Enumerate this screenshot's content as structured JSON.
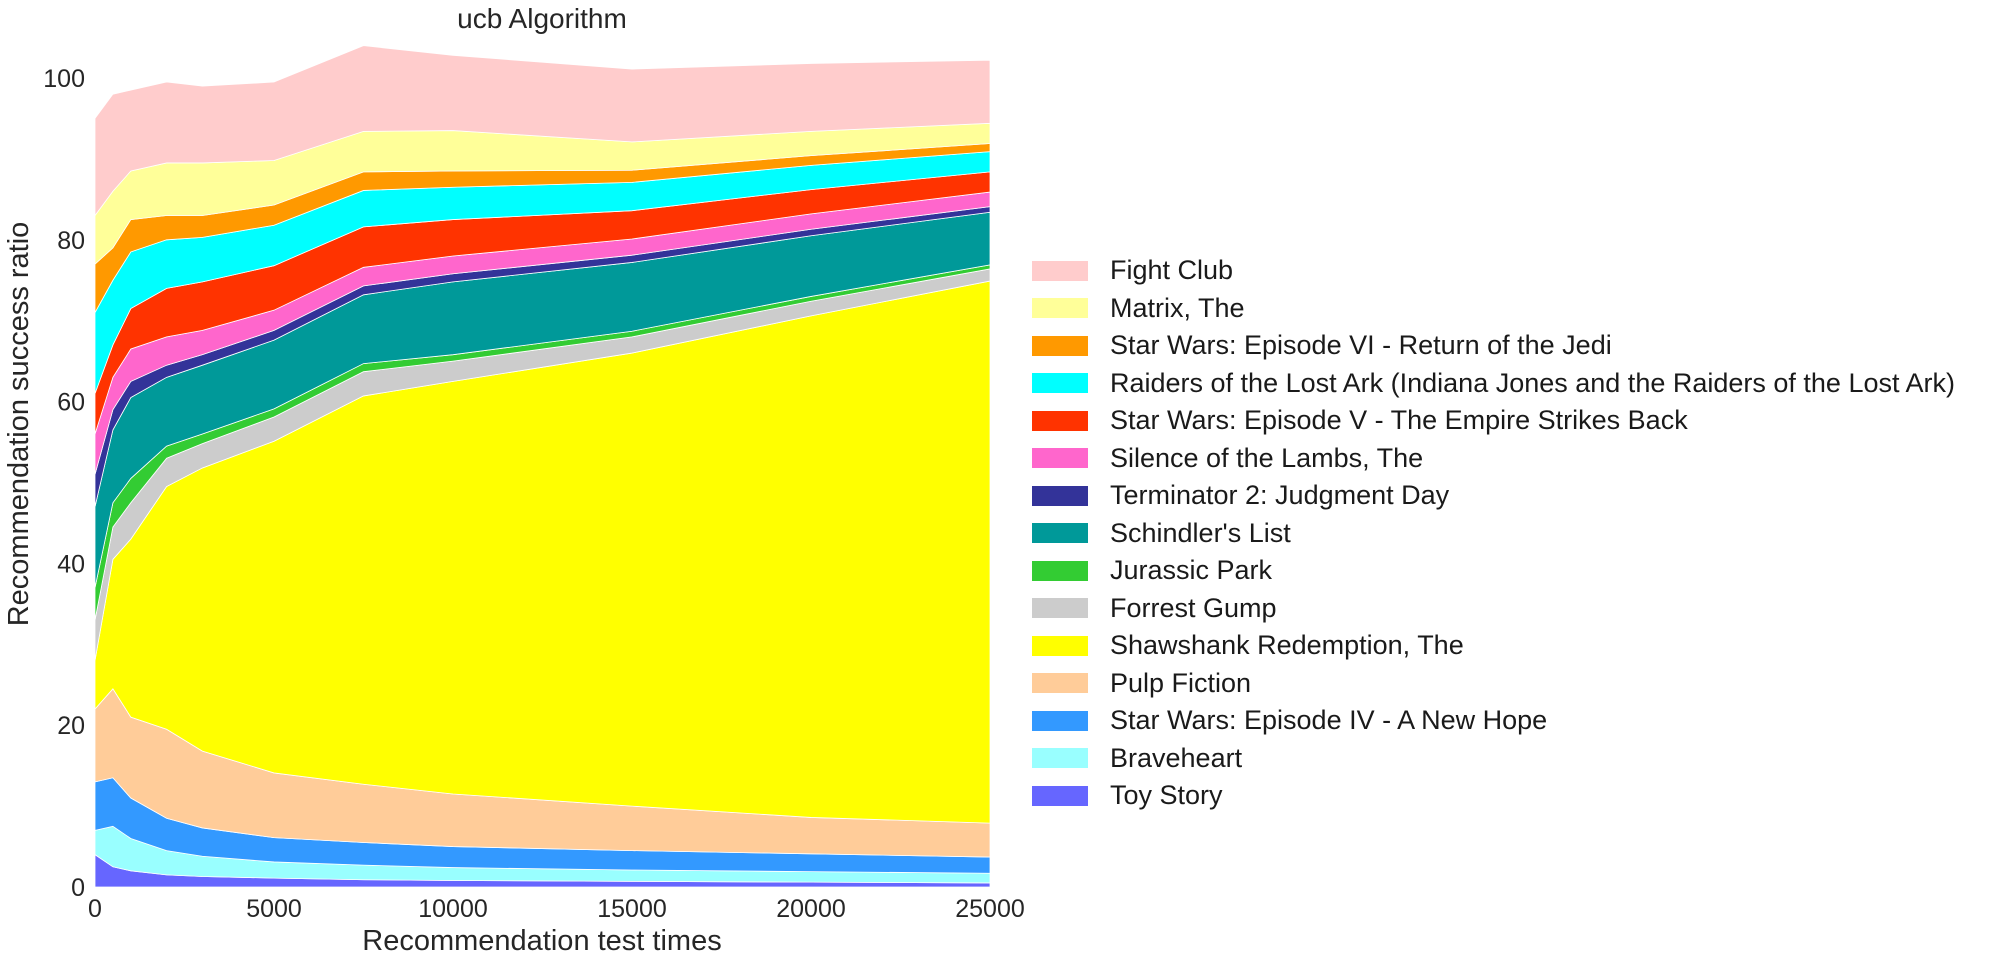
{
  "chart_data": {
    "type": "area",
    "title": "ucb Algorithm",
    "xlabel": "Recommendation test times",
    "ylabel": "Recommendation success ratio",
    "xlim": [
      0,
      25000
    ],
    "ylim": [
      0,
      100
    ],
    "xticks": [
      "0",
      "5000",
      "10000",
      "15000",
      "20000",
      "25000"
    ],
    "yticks": [
      "0",
      "20",
      "40",
      "60",
      "80",
      "100"
    ],
    "grid": false,
    "legend_position": "right",
    "x": [
      0,
      500,
      1000,
      2000,
      3000,
      5000,
      7500,
      10000,
      15000,
      20000,
      25000
    ],
    "series": [
      {
        "name": "Toy Story",
        "color": "#6666ff",
        "values": [
          4,
          2.5,
          2,
          1.5,
          1.3,
          1.1,
          0.9,
          0.8,
          0.7,
          0.6,
          0.5
        ]
      },
      {
        "name": "Braveheart",
        "color": "#99ffff",
        "values": [
          3,
          5,
          4,
          3,
          2.5,
          2,
          1.8,
          1.6,
          1.4,
          1.3,
          1.2
        ]
      },
      {
        "name": "Star Wars: Episode IV - A New Hope",
        "color": "#3399ff",
        "values": [
          6,
          6,
          5,
          4,
          3.5,
          3,
          2.8,
          2.6,
          2.4,
          2.2,
          2.0
        ]
      },
      {
        "name": "Pulp Fiction",
        "color": "#ffcc99",
        "values": [
          9,
          11,
          10,
          11,
          9.5,
          8,
          7.2,
          6.5,
          5.5,
          4.5,
          4.2
        ]
      },
      {
        "name": "Shawshank Redemption, The",
        "color": "#ffff00",
        "values": [
          6,
          16,
          22,
          30,
          35,
          41,
          48,
          51,
          56,
          62,
          67
        ]
      },
      {
        "name": "Forrest Gump",
        "color": "#cccccc",
        "values": [
          5,
          4,
          4.5,
          3.5,
          3,
          3,
          3,
          2.5,
          2,
          1.8,
          1.5
        ]
      },
      {
        "name": "Jurassic Park",
        "color": "#33cc33",
        "values": [
          4,
          3,
          3,
          1.5,
          1.2,
          1,
          1,
          0.8,
          0.7,
          0.6,
          0.5
        ]
      },
      {
        "name": "Schindler's List",
        "color": "#009999",
        "values": [
          10,
          9,
          10,
          8.5,
          8.5,
          8.5,
          8.5,
          9,
          8.5,
          7.5,
          6.5
        ]
      },
      {
        "name": "Terminator 2: Judgment Day",
        "color": "#333399",
        "values": [
          4,
          2.5,
          2,
          1.5,
          1.3,
          1.2,
          1.1,
          1,
          0.9,
          0.8,
          0.7
        ]
      },
      {
        "name": "Silence of the Lambs, The",
        "color": "#ff66cc",
        "values": [
          5,
          4,
          4,
          3.5,
          3,
          2.5,
          2.3,
          2.2,
          2,
          1.9,
          1.8
        ]
      },
      {
        "name": "Star Wars: Episode V - The Empire Strikes Back",
        "color": "#ff3300",
        "values": [
          5,
          4,
          5,
          6,
          6,
          5.5,
          5,
          4.5,
          3.5,
          3,
          2.5
        ]
      },
      {
        "name": "Raiders of the Lost Ark (Indiana Jones and the Raiders of the Lost Ark)",
        "color": "#00ffff",
        "values": [
          10,
          8,
          7,
          6,
          5.5,
          5,
          4.5,
          4,
          3.5,
          3,
          2.5
        ]
      },
      {
        "name": "Star Wars: Episode VI - Return of the Jedi",
        "color": "#ff9900",
        "values": [
          6,
          4,
          4,
          3,
          2.7,
          2.5,
          2.3,
          2,
          1.5,
          1.2,
          1.0
        ]
      },
      {
        "name": "Matrix, The",
        "color": "#ffff99",
        "values": [
          6,
          7,
          6,
          6.5,
          6.5,
          5.5,
          5,
          5,
          3.5,
          3,
          2.5
        ]
      },
      {
        "name": "Fight Club",
        "color": "#ffcccc",
        "values": [
          12,
          12,
          10,
          10,
          9.5,
          9.7,
          10.6,
          9.3,
          9.0,
          8.4,
          7.8
        ]
      }
    ]
  }
}
